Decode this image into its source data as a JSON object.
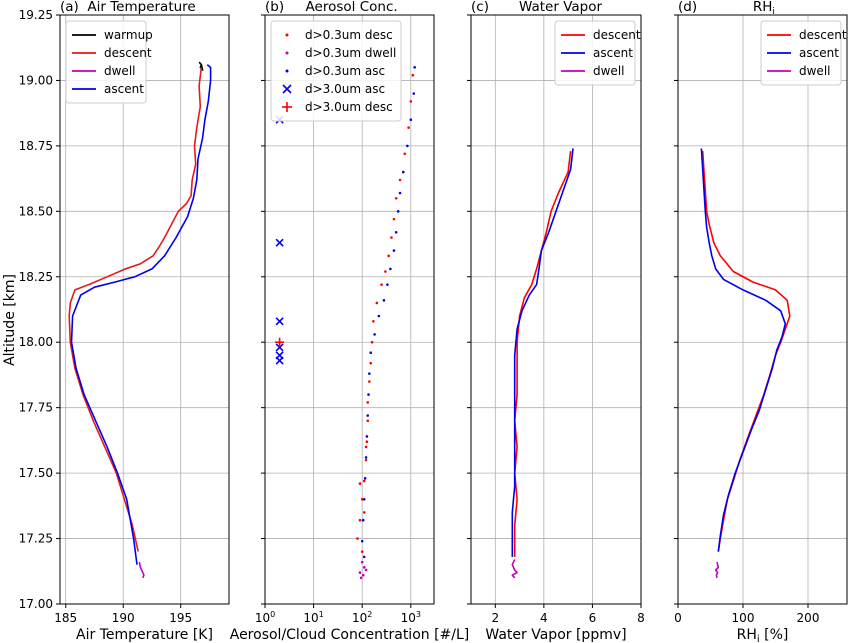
{
  "figure": {
    "ylabel": "Altitude [km]"
  },
  "chart_data": [
    {
      "type": "line",
      "panel_title": "(a)  Air Temperature",
      "xlabel": "Air Temperature [K]",
      "ylabel": "Altitude [km]",
      "xlim": [
        184.5,
        199.2
      ],
      "ylim": [
        17.0,
        19.25
      ],
      "xticks": [
        "185",
        "190",
        "195"
      ],
      "xtick_values": [
        185,
        190,
        195
      ],
      "yticks": [
        "17.00",
        "17.25",
        "17.50",
        "17.75",
        "18.00",
        "18.25",
        "18.50",
        "18.75",
        "19.00",
        "19.25"
      ],
      "ytick_values": [
        17.0,
        17.25,
        17.5,
        17.75,
        18.0,
        18.25,
        18.5,
        18.75,
        19.0,
        19.25
      ],
      "grid": true,
      "legend_position": "top-left",
      "series": [
        {
          "name": "warmup",
          "color": "#000000",
          "x": [
            196.6,
            196.8,
            196.7,
            196.9,
            196.8,
            196.7
          ],
          "y": [
            19.07,
            19.06,
            19.05,
            19.04,
            19.06,
            19.05
          ]
        },
        {
          "name": "descent",
          "color": "#e41a1c",
          "x": [
            196.8,
            196.6,
            196.7,
            196.4,
            196.2,
            196.3,
            196.0,
            195.9,
            195.5,
            194.8,
            194.2,
            193.6,
            193.2,
            192.6,
            191.5,
            190.2,
            188.6,
            187.0,
            185.8,
            185.4,
            185.3,
            185.4,
            185.8,
            186.5,
            187.4,
            188.4,
            189.4,
            190.1,
            190.8,
            191.3
          ],
          "y": [
            19.05,
            18.98,
            18.9,
            18.82,
            18.75,
            18.68,
            18.62,
            18.56,
            18.53,
            18.5,
            18.45,
            18.4,
            18.37,
            18.33,
            18.3,
            18.28,
            18.25,
            18.22,
            18.2,
            18.15,
            18.1,
            18.0,
            17.9,
            17.8,
            17.7,
            17.6,
            17.5,
            17.4,
            17.3,
            17.2
          ]
        },
        {
          "name": "dwell",
          "color": "#bf00bf",
          "x": [
            191.4,
            191.5,
            191.6,
            191.7,
            191.8,
            191.7
          ],
          "y": [
            17.16,
            17.14,
            17.13,
            17.12,
            17.11,
            17.1
          ]
        },
        {
          "name": "ascent",
          "color": "#0000ee",
          "x": [
            191.2,
            190.9,
            190.3,
            189.5,
            188.6,
            187.6,
            186.6,
            185.9,
            185.5,
            185.6,
            186.3,
            187.5,
            189.3,
            191.0,
            192.5,
            193.6,
            194.6,
            195.6,
            196.1,
            196.4,
            196.5,
            196.9,
            197.1,
            197.4,
            197.6,
            197.6,
            197.3
          ],
          "y": [
            17.15,
            17.25,
            17.4,
            17.5,
            17.6,
            17.7,
            17.8,
            17.9,
            18.0,
            18.1,
            18.18,
            18.21,
            18.23,
            18.25,
            18.28,
            18.33,
            18.4,
            18.48,
            18.55,
            18.62,
            18.7,
            18.78,
            18.85,
            18.92,
            19.0,
            19.05,
            19.06
          ]
        }
      ]
    },
    {
      "type": "scatter",
      "panel_title": "(b)     Aerosol Conc.",
      "xlabel": "Aerosol/Cloud Concentration [#/L]",
      "xscale": "log",
      "xlim": [
        1,
        3000
      ],
      "ylim": [
        17.0,
        19.25
      ],
      "xticks": [
        {
          "base": "10",
          "exp": "0"
        },
        {
          "base": "10",
          "exp": "1"
        },
        {
          "base": "10",
          "exp": "2"
        },
        {
          "base": "10",
          "exp": "3"
        }
      ],
      "xtick_values": [
        1,
        10,
        100,
        1000
      ],
      "grid": true,
      "legend_position": "top-left",
      "series": [
        {
          "name": "d>0.3um desc",
          "color": "#ff0000",
          "marker": "dot",
          "x": [
            1100,
            1000,
            900,
            750,
            600,
            500,
            450,
            400,
            350,
            300,
            250,
            200,
            170,
            160,
            150,
            140,
            130,
            130,
            125,
            120,
            110,
            100,
            90,
            80,
            100,
            90,
            120,
            110
          ],
          "y": [
            19.02,
            18.92,
            18.82,
            18.72,
            18.62,
            18.55,
            18.47,
            18.4,
            18.33,
            18.27,
            18.22,
            18.15,
            18.08,
            18.0,
            17.92,
            17.85,
            17.77,
            17.7,
            17.62,
            17.55,
            17.47,
            17.4,
            17.32,
            17.25,
            17.2,
            17.46,
            17.6,
            17.35
          ]
        },
        {
          "name": "d>0.3um dwell",
          "color": "#bf00bf",
          "marker": "dot",
          "x": [
            100,
            110,
            90,
            120,
            105,
            95
          ],
          "y": [
            17.16,
            17.14,
            17.12,
            17.13,
            17.11,
            17.1
          ]
        },
        {
          "name": "d>0.3um asc",
          "color": "#0000ee",
          "marker": "dot",
          "x": [
            1200,
            1150,
            1000,
            850,
            700,
            600,
            550,
            500,
            450,
            380,
            330,
            280,
            220,
            180,
            150,
            140,
            135,
            130,
            125,
            120,
            115,
            110,
            105,
            100,
            110
          ],
          "y": [
            19.05,
            18.95,
            18.85,
            18.75,
            18.65,
            18.57,
            18.5,
            18.42,
            18.35,
            18.28,
            18.22,
            18.16,
            18.1,
            18.03,
            17.96,
            17.88,
            17.8,
            17.72,
            17.64,
            17.56,
            17.48,
            17.4,
            17.32,
            17.24,
            17.18
          ]
        },
        {
          "name": "d>3.0um asc",
          "color": "#0000ee",
          "marker": "x",
          "x": [
            2,
            2,
            2,
            2,
            2,
            2
          ],
          "y": [
            18.85,
            18.38,
            18.08,
            17.98,
            17.95,
            17.93
          ]
        },
        {
          "name": "d>3.0um desc",
          "color": "#ff0000",
          "marker": "plus",
          "x": [
            2
          ],
          "y": [
            18.0
          ]
        }
      ]
    },
    {
      "type": "line",
      "panel_title": "(c)       Water Vapor",
      "xlabel": "Water Vapor [ppmv]",
      "xlim": [
        1.0,
        8.0
      ],
      "ylim": [
        17.0,
        19.25
      ],
      "xticks": [
        "2",
        "4",
        "6",
        "8"
      ],
      "xtick_values": [
        2,
        4,
        6,
        8
      ],
      "grid": true,
      "legend_position": "top-right",
      "series": [
        {
          "name": "descent",
          "color": "#ff0000",
          "x": [
            5.1,
            5.0,
            4.6,
            4.3,
            4.1,
            3.9,
            3.7,
            3.5,
            3.2,
            3.0,
            2.9,
            2.9,
            2.9,
            2.8,
            2.9,
            2.8,
            2.9,
            2.8,
            2.8,
            2.8
          ],
          "y": [
            18.73,
            18.65,
            18.57,
            18.5,
            18.42,
            18.35,
            18.28,
            18.22,
            18.17,
            18.1,
            18.0,
            17.9,
            17.8,
            17.7,
            17.6,
            17.5,
            17.4,
            17.3,
            17.22,
            17.18
          ]
        },
        {
          "name": "ascent",
          "color": "#0000ee",
          "x": [
            5.2,
            5.1,
            4.8,
            4.5,
            4.2,
            3.9,
            3.8,
            3.7,
            3.4,
            3.1,
            2.9,
            2.8,
            2.8,
            2.8,
            2.8,
            2.8,
            2.8,
            2.7,
            2.7,
            2.7
          ],
          "y": [
            18.74,
            18.66,
            18.58,
            18.5,
            18.42,
            18.35,
            18.28,
            18.22,
            18.18,
            18.12,
            18.05,
            17.95,
            17.85,
            17.75,
            17.65,
            17.55,
            17.45,
            17.35,
            17.25,
            17.18
          ]
        },
        {
          "name": "dwell",
          "color": "#bf00bf",
          "x": [
            2.8,
            2.7,
            2.8,
            2.9,
            2.7,
            2.8
          ],
          "y": [
            17.17,
            17.15,
            17.13,
            17.12,
            17.11,
            17.1
          ]
        }
      ]
    },
    {
      "type": "line",
      "panel_title": "(d)             RH",
      "panel_title_sub": "i",
      "xlabel": "RH",
      "xlabel_sub": "i",
      "xlabel_rest": " [%]",
      "xlim": [
        0,
        260
      ],
      "ylim": [
        17.0,
        19.25
      ],
      "xticks": [
        "0",
        "100",
        "200"
      ],
      "xtick_values": [
        0,
        100,
        200
      ],
      "grid": true,
      "legend_position": "top-right",
      "series": [
        {
          "name": "descent",
          "color": "#ff0000",
          "x": [
            38,
            40,
            42,
            44,
            48,
            55,
            65,
            85,
            115,
            150,
            168,
            172,
            165,
            158,
            150,
            142,
            132,
            120,
            108,
            95,
            85,
            76,
            70,
            65,
            62
          ],
          "y": [
            18.73,
            18.65,
            18.58,
            18.5,
            18.45,
            18.38,
            18.33,
            18.27,
            18.23,
            18.2,
            18.16,
            18.1,
            18.05,
            18.0,
            17.95,
            17.88,
            17.8,
            17.72,
            17.64,
            17.55,
            17.47,
            17.4,
            17.32,
            17.25,
            17.2
          ]
        },
        {
          "name": "ascent",
          "color": "#0000ee",
          "x": [
            36,
            38,
            40,
            42,
            44,
            48,
            52,
            58,
            70,
            100,
            135,
            158,
            165,
            160,
            152,
            145,
            135,
            125,
            112,
            100,
            88,
            78,
            70,
            65,
            62
          ],
          "y": [
            18.74,
            18.66,
            18.58,
            18.5,
            18.44,
            18.38,
            18.33,
            18.28,
            18.24,
            18.2,
            18.16,
            18.12,
            18.07,
            18.02,
            17.97,
            17.9,
            17.82,
            17.74,
            17.66,
            17.58,
            17.5,
            17.42,
            17.34,
            17.26,
            17.2
          ]
        },
        {
          "name": "dwell",
          "color": "#bf00bf",
          "x": [
            60,
            62,
            58,
            61,
            59,
            60
          ],
          "y": [
            17.16,
            17.14,
            17.13,
            17.12,
            17.11,
            17.1
          ]
        }
      ]
    }
  ]
}
